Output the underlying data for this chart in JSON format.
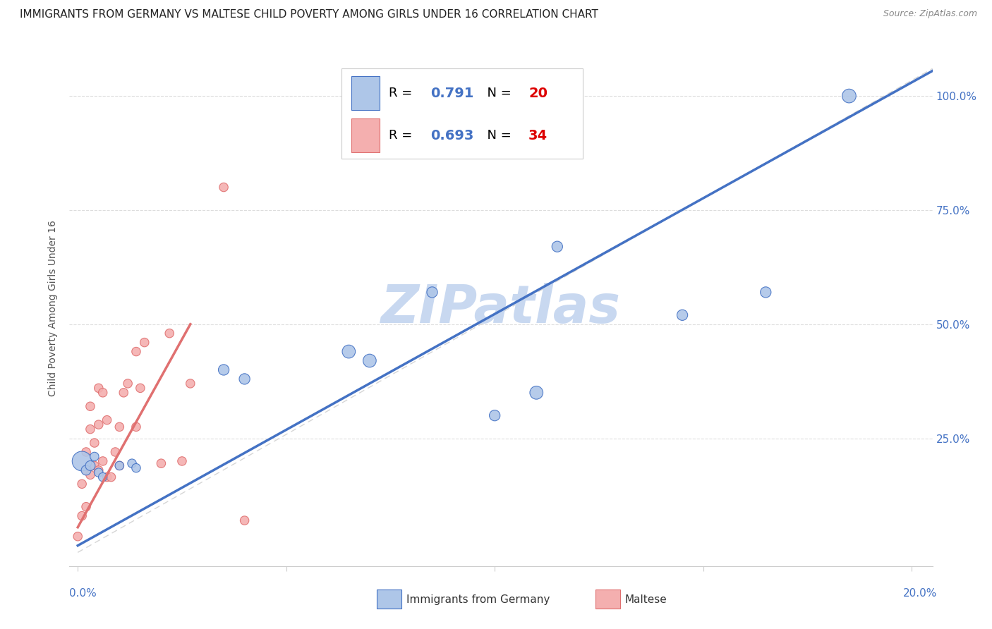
{
  "title": "IMMIGRANTS FROM GERMANY VS MALTESE CHILD POVERTY AMONG GIRLS UNDER 16 CORRELATION CHART",
  "source": "Source: ZipAtlas.com",
  "ylabel_left": "Child Poverty Among Girls Under 16",
  "blue_scatter_x": [
    0.001,
    0.002,
    0.003,
    0.004,
    0.005,
    0.006,
    0.01,
    0.013,
    0.014,
    0.035,
    0.04,
    0.065,
    0.07,
    0.085,
    0.1,
    0.11,
    0.115,
    0.145,
    0.165,
    0.185
  ],
  "blue_scatter_y": [
    0.2,
    0.18,
    0.19,
    0.21,
    0.175,
    0.165,
    0.19,
    0.195,
    0.185,
    0.4,
    0.38,
    0.44,
    0.42,
    0.57,
    0.3,
    0.35,
    0.67,
    0.52,
    0.57,
    1.0
  ],
  "blue_scatter_size": [
    400,
    100,
    100,
    80,
    80,
    80,
    80,
    80,
    80,
    120,
    120,
    180,
    180,
    120,
    120,
    180,
    120,
    120,
    120,
    200
  ],
  "pink_scatter_x": [
    0.0,
    0.001,
    0.001,
    0.002,
    0.002,
    0.002,
    0.003,
    0.003,
    0.003,
    0.004,
    0.004,
    0.005,
    0.005,
    0.005,
    0.006,
    0.006,
    0.007,
    0.007,
    0.008,
    0.009,
    0.01,
    0.01,
    0.011,
    0.012,
    0.014,
    0.014,
    0.015,
    0.016,
    0.02,
    0.022,
    0.025,
    0.027,
    0.035,
    0.04
  ],
  "pink_scatter_y": [
    0.035,
    0.15,
    0.08,
    0.18,
    0.22,
    0.1,
    0.17,
    0.27,
    0.32,
    0.19,
    0.24,
    0.18,
    0.28,
    0.36,
    0.2,
    0.35,
    0.165,
    0.29,
    0.165,
    0.22,
    0.19,
    0.275,
    0.35,
    0.37,
    0.44,
    0.275,
    0.36,
    0.46,
    0.195,
    0.48,
    0.2,
    0.37,
    0.8,
    0.07
  ],
  "pink_scatter_size": [
    80,
    80,
    80,
    80,
    80,
    80,
    80,
    80,
    80,
    80,
    80,
    80,
    80,
    80,
    80,
    80,
    80,
    80,
    80,
    80,
    80,
    80,
    80,
    80,
    80,
    80,
    80,
    80,
    80,
    80,
    80,
    80,
    80,
    80
  ],
  "blue_line_color": "#4472C4",
  "pink_line_color": "#E07070",
  "blue_scatter_color": "#AEC6E8",
  "pink_scatter_color": "#F4AFAF",
  "blue_r": "0.791",
  "blue_n": "20",
  "pink_r": "0.693",
  "pink_n": "34",
  "watermark": "ZIPatlas",
  "watermark_color": "#C8D8F0",
  "background_color": "#FFFFFF",
  "grid_color": "#DDDDDD",
  "title_fontsize": 11,
  "axis_label_fontsize": 10
}
